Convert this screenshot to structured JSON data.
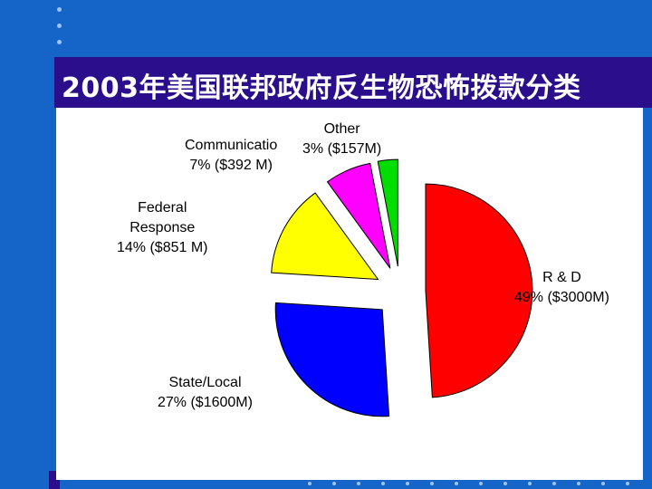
{
  "slide": {
    "title": "2003年美国联邦政府反生物恐怖拨款分类"
  },
  "chart_data": {
    "type": "pie",
    "title": "2003年美国联邦政府反生物恐怖拨款分类",
    "exploded": true,
    "start": "top, clockwise",
    "slices": [
      {
        "key": "rnd",
        "name": "R & D",
        "name_lines": [
          "R & D"
        ],
        "percent": 49,
        "value_label": "49% ($3000M)",
        "value": 3000,
        "color": "#ff0000"
      },
      {
        "key": "state",
        "name": "State/Local",
        "name_lines": [
          "State/Local"
        ],
        "percent": 27,
        "value_label": "27% ($1600M)",
        "value": 1600,
        "color": "#0000ff"
      },
      {
        "key": "federal",
        "name": "Federal Response",
        "name_lines": [
          "Federal",
          "Response"
        ],
        "percent": 14,
        "value_label": "14% ($851 M)",
        "value": 851,
        "color": "#ffff00"
      },
      {
        "key": "comm",
        "name": "Communicatio",
        "name_lines": [
          "Communicatio"
        ],
        "percent": 7,
        "value_label": "7% ($392 M)",
        "value": 392,
        "color": "#ff00ff"
      },
      {
        "key": "other",
        "name": "Other",
        "name_lines": [
          "Other"
        ],
        "percent": 3,
        "value_label": "3% ($157M)",
        "value": 157,
        "color": "#00dd00"
      }
    ]
  }
}
